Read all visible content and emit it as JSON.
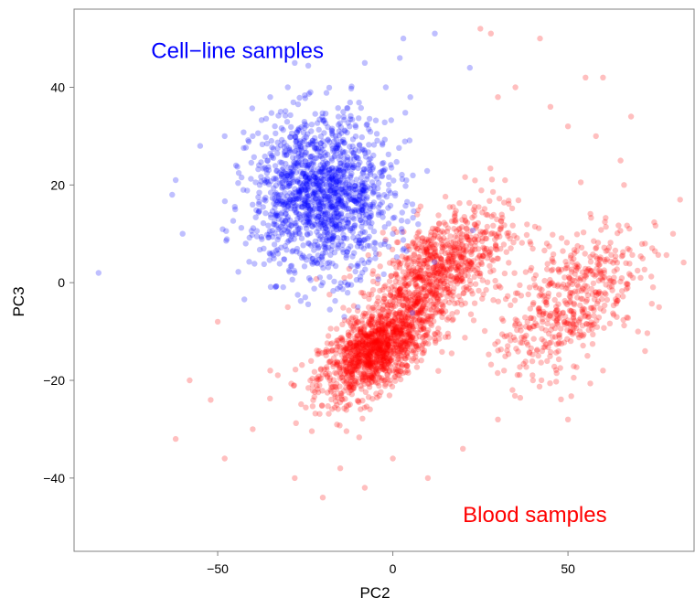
{
  "chart_data": {
    "type": "scatter",
    "xlabel": "PC2",
    "ylabel": "PC3",
    "xlim": [
      -91,
      86
    ],
    "ylim": [
      -55,
      56
    ],
    "xticks": [
      -50,
      0,
      50
    ],
    "yticks": [
      40,
      20,
      0,
      -20,
      -40
    ],
    "grid": false,
    "annotations": [
      {
        "text": "Cell−line samples",
        "x": -69,
        "y": 46,
        "color": "#0000ff"
      },
      {
        "text": "Blood samples",
        "x": 20,
        "y": -49,
        "color": "#ff0000"
      }
    ],
    "series": [
      {
        "name": "Cell−line samples",
        "color": "#0000ff",
        "opacity": 0.25,
        "center": [
          -20,
          18
        ],
        "spread": [
          10,
          8
        ],
        "points": [
          [
            -84,
            2
          ],
          [
            -62,
            21
          ],
          [
            -63,
            18
          ],
          [
            -60,
            10
          ],
          [
            -55,
            28
          ],
          [
            -48,
            30
          ],
          [
            -42,
            8
          ],
          [
            -40,
            30
          ],
          [
            -35,
            38
          ],
          [
            -32,
            35
          ],
          [
            -30,
            40
          ],
          [
            -28,
            45
          ],
          [
            -8,
            45
          ],
          [
            2,
            46
          ],
          [
            3,
            50
          ],
          [
            12,
            51
          ],
          [
            22,
            44
          ],
          [
            -2,
            40
          ],
          [
            5,
            38
          ],
          [
            -16,
            27
          ],
          [
            -32,
            18
          ],
          [
            -34,
            12
          ],
          [
            -38,
            20
          ],
          [
            -28,
            2
          ],
          [
            -20,
            0
          ],
          [
            -10,
            -5
          ],
          [
            -25,
            -3
          ],
          [
            -5,
            5
          ],
          [
            0,
            10
          ],
          [
            -45,
            15
          ]
        ]
      },
      {
        "name": "Blood samples",
        "color": "#ff0000",
        "opacity": 0.25,
        "clusters": [
          {
            "center": [
              -5,
              -14
            ],
            "spread": [
              8,
              5
            ],
            "weight": 0.45
          },
          {
            "center": [
              12,
              2
            ],
            "spread": [
              10,
              7
            ],
            "weight": 0.35
          },
          {
            "center": [
              50,
              -4
            ],
            "spread": [
              10,
              8
            ],
            "weight": 0.2
          }
        ],
        "points": [
          [
            -62,
            -32
          ],
          [
            -58,
            -20
          ],
          [
            -52,
            -24
          ],
          [
            -50,
            -8
          ],
          [
            -48,
            -36
          ],
          [
            -40,
            -30
          ],
          [
            -35,
            -18
          ],
          [
            -30,
            -5
          ],
          [
            -28,
            -40
          ],
          [
            -20,
            -44
          ],
          [
            -15,
            -38
          ],
          [
            -8,
            -42
          ],
          [
            0,
            -36
          ],
          [
            10,
            -40
          ],
          [
            20,
            -34
          ],
          [
            30,
            -28
          ],
          [
            40,
            -20
          ],
          [
            50,
            -28
          ],
          [
            60,
            -18
          ],
          [
            70,
            -10
          ],
          [
            72,
            8
          ],
          [
            82,
            17
          ],
          [
            80,
            10
          ],
          [
            65,
            25
          ],
          [
            55,
            42
          ],
          [
            60,
            42
          ],
          [
            45,
            36
          ],
          [
            35,
            40
          ],
          [
            30,
            38
          ],
          [
            25,
            52
          ],
          [
            28,
            51
          ],
          [
            42,
            50
          ],
          [
            50,
            32
          ],
          [
            58,
            30
          ],
          [
            68,
            34
          ],
          [
            66,
            20
          ],
          [
            76,
            -5
          ],
          [
            72,
            -14
          ]
        ]
      }
    ]
  }
}
